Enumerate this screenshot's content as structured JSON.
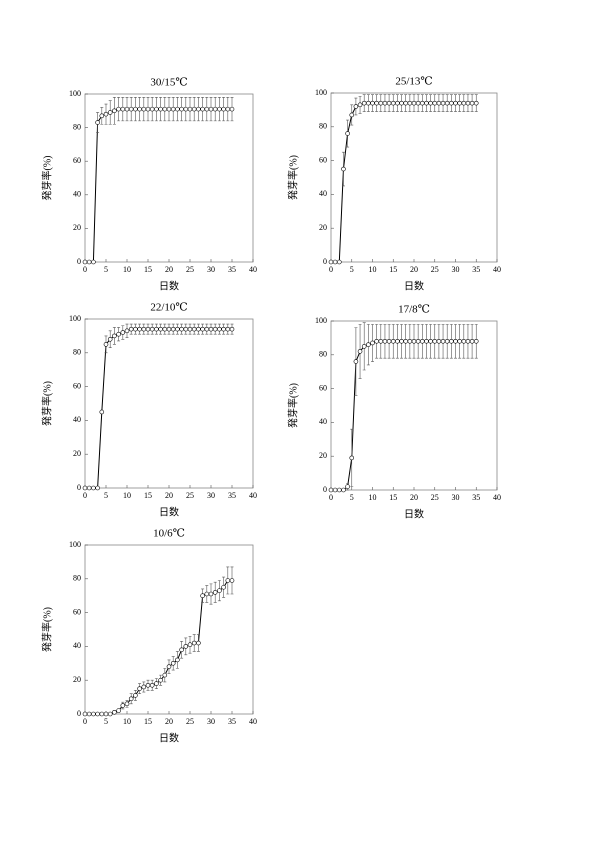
{
  "chart_data": [
    {
      "type": "line",
      "title": "30/15℃",
      "xlabel": "日数",
      "ylabel": "発芽率(%)",
      "x": [
        0,
        1,
        2,
        3,
        4,
        5,
        6,
        7,
        8,
        9,
        10,
        11,
        12,
        13,
        14,
        15,
        16,
        17,
        18,
        19,
        20,
        21,
        22,
        23,
        24,
        25,
        26,
        27,
        28,
        29,
        30,
        31,
        32,
        33,
        34,
        35
      ],
      "values": [
        0,
        0,
        0,
        83,
        87,
        88,
        89,
        90,
        91,
        91,
        91,
        91,
        91,
        91,
        91,
        91,
        91,
        91,
        91,
        91,
        91,
        91,
        91,
        91,
        91,
        91,
        91,
        91,
        91,
        91,
        91,
        91,
        91,
        91,
        91,
        91
      ],
      "errors": [
        0,
        0,
        0,
        6,
        5,
        6,
        7,
        8,
        7,
        7,
        7,
        7,
        7,
        7,
        7,
        7,
        7,
        7,
        7,
        7,
        7,
        7,
        7,
        7,
        7,
        7,
        7,
        7,
        7,
        7,
        7,
        7,
        7,
        7,
        7,
        7
      ],
      "xlim": [
        0,
        40
      ],
      "ylim": [
        0,
        100
      ],
      "xticks": [
        0,
        5,
        10,
        15,
        20,
        25,
        30,
        35,
        40
      ],
      "yticks": [
        0,
        20,
        40,
        60,
        80,
        100
      ],
      "color": "#000000"
    },
    {
      "type": "line",
      "title": "25/13℃",
      "xlabel": "日数",
      "ylabel": "発芽率(%)",
      "x": [
        0,
        1,
        2,
        3,
        4,
        5,
        6,
        7,
        8,
        9,
        10,
        11,
        12,
        13,
        14,
        15,
        16,
        17,
        18,
        19,
        20,
        21,
        22,
        23,
        24,
        25,
        26,
        27,
        28,
        29,
        30,
        31,
        32,
        33,
        34,
        35
      ],
      "values": [
        0,
        0,
        0,
        55,
        76,
        87,
        92,
        93,
        94,
        94,
        94,
        94,
        94,
        94,
        94,
        94,
        94,
        94,
        94,
        94,
        94,
        94,
        94,
        94,
        94,
        94,
        94,
        94,
        94,
        94,
        94,
        94,
        94,
        94,
        94,
        94
      ],
      "errors": [
        0,
        0,
        0,
        10,
        8,
        6,
        5,
        5,
        5,
        5,
        5,
        5,
        5,
        5,
        5,
        5,
        5,
        5,
        5,
        5,
        5,
        5,
        5,
        5,
        5,
        5,
        5,
        5,
        5,
        5,
        5,
        5,
        5,
        5,
        5,
        5
      ],
      "xlim": [
        0,
        40
      ],
      "ylim": [
        0,
        100
      ],
      "xticks": [
        0,
        5,
        10,
        15,
        20,
        25,
        30,
        35,
        40
      ],
      "yticks": [
        0,
        20,
        40,
        60,
        80,
        100
      ],
      "color": "#000000"
    },
    {
      "type": "line",
      "title": "22/10℃",
      "xlabel": "日数",
      "ylabel": "発芽率(%)",
      "x": [
        0,
        1,
        2,
        3,
        4,
        5,
        6,
        7,
        8,
        9,
        10,
        11,
        12,
        13,
        14,
        15,
        16,
        17,
        18,
        19,
        20,
        21,
        22,
        23,
        24,
        25,
        26,
        27,
        28,
        29,
        30,
        31,
        32,
        33,
        34,
        35
      ],
      "values": [
        0,
        0,
        0,
        0,
        45,
        85,
        88,
        90,
        91,
        92,
        93,
        94,
        94,
        94,
        94,
        94,
        94,
        94,
        94,
        94,
        94,
        94,
        94,
        94,
        94,
        94,
        94,
        94,
        94,
        94,
        94,
        94,
        94,
        94,
        94,
        94
      ],
      "errors": [
        0,
        0,
        0,
        0,
        0,
        5,
        5,
        5,
        4,
        4,
        4,
        3,
        3,
        3,
        3,
        3,
        3,
        3,
        3,
        3,
        3,
        3,
        3,
        3,
        3,
        3,
        3,
        3,
        3,
        3,
        3,
        3,
        3,
        3,
        3,
        3
      ],
      "xlim": [
        0,
        40
      ],
      "ylim": [
        0,
        100
      ],
      "xticks": [
        0,
        5,
        10,
        15,
        20,
        25,
        30,
        35,
        40
      ],
      "yticks": [
        0,
        20,
        40,
        60,
        80,
        100
      ],
      "color": "#000000"
    },
    {
      "type": "line",
      "title": "17/8℃",
      "xlabel": "日数",
      "ylabel": "発芽率(%)",
      "x": [
        0,
        1,
        2,
        3,
        4,
        5,
        6,
        7,
        8,
        9,
        10,
        11,
        12,
        13,
        14,
        15,
        16,
        17,
        18,
        19,
        20,
        21,
        22,
        23,
        24,
        25,
        26,
        27,
        28,
        29,
        30,
        31,
        32,
        33,
        34,
        35
      ],
      "values": [
        0,
        0,
        0,
        0,
        2,
        19,
        76,
        82,
        85,
        86,
        87,
        88,
        88,
        88,
        88,
        88,
        88,
        88,
        88,
        88,
        88,
        88,
        88,
        88,
        88,
        88,
        88,
        88,
        88,
        88,
        88,
        88,
        88,
        88,
        88,
        88
      ],
      "errors": [
        0,
        0,
        0,
        0,
        2,
        17,
        20,
        16,
        14,
        12,
        11,
        10,
        10,
        10,
        10,
        10,
        10,
        10,
        10,
        10,
        10,
        10,
        10,
        10,
        10,
        10,
        10,
        10,
        10,
        10,
        10,
        10,
        10,
        10,
        10,
        10
      ],
      "xlim": [
        0,
        40
      ],
      "ylim": [
        0,
        100
      ],
      "xticks": [
        0,
        5,
        10,
        15,
        20,
        25,
        30,
        35,
        40
      ],
      "yticks": [
        0,
        20,
        40,
        60,
        80,
        100
      ],
      "color": "#000000"
    },
    {
      "type": "line",
      "title": "10/6℃",
      "xlabel": "日数",
      "ylabel": "発芽率(%)",
      "x": [
        0,
        1,
        2,
        3,
        4,
        5,
        6,
        7,
        8,
        9,
        10,
        11,
        12,
        13,
        14,
        15,
        16,
        17,
        18,
        19,
        20,
        21,
        22,
        23,
        24,
        25,
        26,
        27,
        28,
        29,
        30,
        31,
        32,
        33,
        34,
        35
      ],
      "values": [
        0,
        0,
        0,
        0,
        0,
        0,
        0,
        1,
        2,
        5,
        6,
        9,
        11,
        15,
        16,
        17,
        17,
        18,
        20,
        23,
        28,
        30,
        32,
        38,
        40,
        41,
        42,
        42,
        70,
        71,
        71,
        72,
        73,
        75,
        79,
        79
      ],
      "errors": [
        0,
        0,
        0,
        0,
        0,
        0,
        0,
        1,
        1,
        2,
        2,
        3,
        3,
        3,
        3,
        3,
        3,
        3,
        3,
        4,
        4,
        4,
        5,
        5,
        5,
        5,
        5,
        5,
        4,
        5,
        6,
        6,
        6,
        6,
        8,
        8
      ],
      "xlim": [
        0,
        40
      ],
      "ylim": [
        0,
        100
      ],
      "xticks": [
        0,
        5,
        10,
        15,
        20,
        25,
        30,
        35,
        40
      ],
      "yticks": [
        0,
        20,
        40,
        60,
        80,
        100
      ],
      "color": "#000000"
    }
  ]
}
